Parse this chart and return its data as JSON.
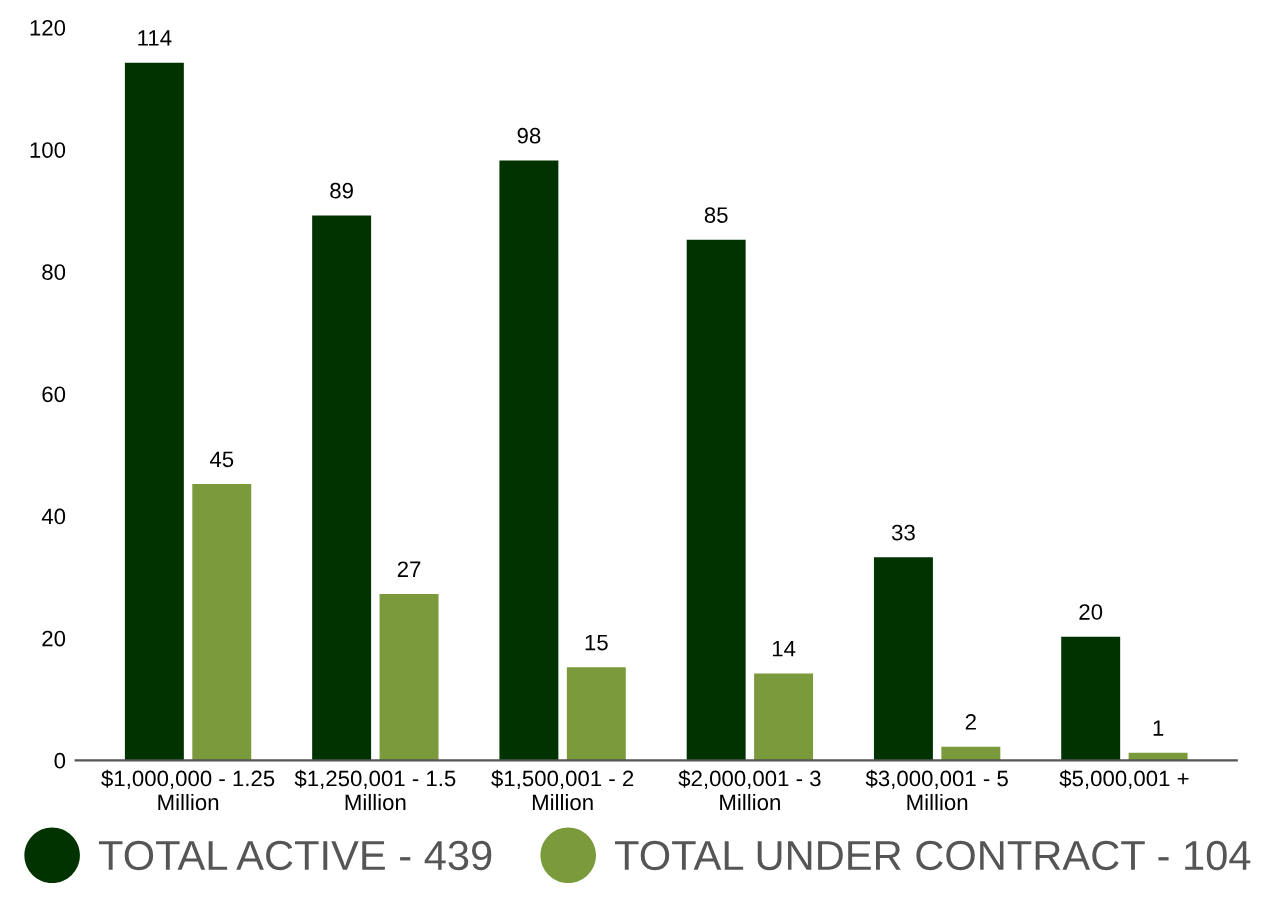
{
  "chart_data": {
    "type": "bar",
    "categories": [
      "$1,000,000 - 1.25\nMillion",
      "$1,250,001 - 1.5\nMillion",
      "$1,500,001 - 2\nMillion",
      "$2,000,001 - 3\nMillion",
      "$3,000,001 - 5\nMillion",
      "$5,000,001 +"
    ],
    "series": [
      {
        "name": "TOTAL ACTIVE - 439",
        "color": "#003300",
        "values": [
          114,
          89,
          98,
          85,
          33,
          20
        ]
      },
      {
        "name": "TOTAL UNDER CONTRACT - 104",
        "color": "#7a9a3c",
        "values": [
          45,
          27,
          15,
          14,
          2,
          1
        ]
      }
    ],
    "ylim": [
      0,
      120
    ],
    "yticks": [
      0,
      20,
      40,
      60,
      80,
      100,
      120
    ],
    "data_labels": true,
    "legend": "bottom",
    "grid": false
  }
}
